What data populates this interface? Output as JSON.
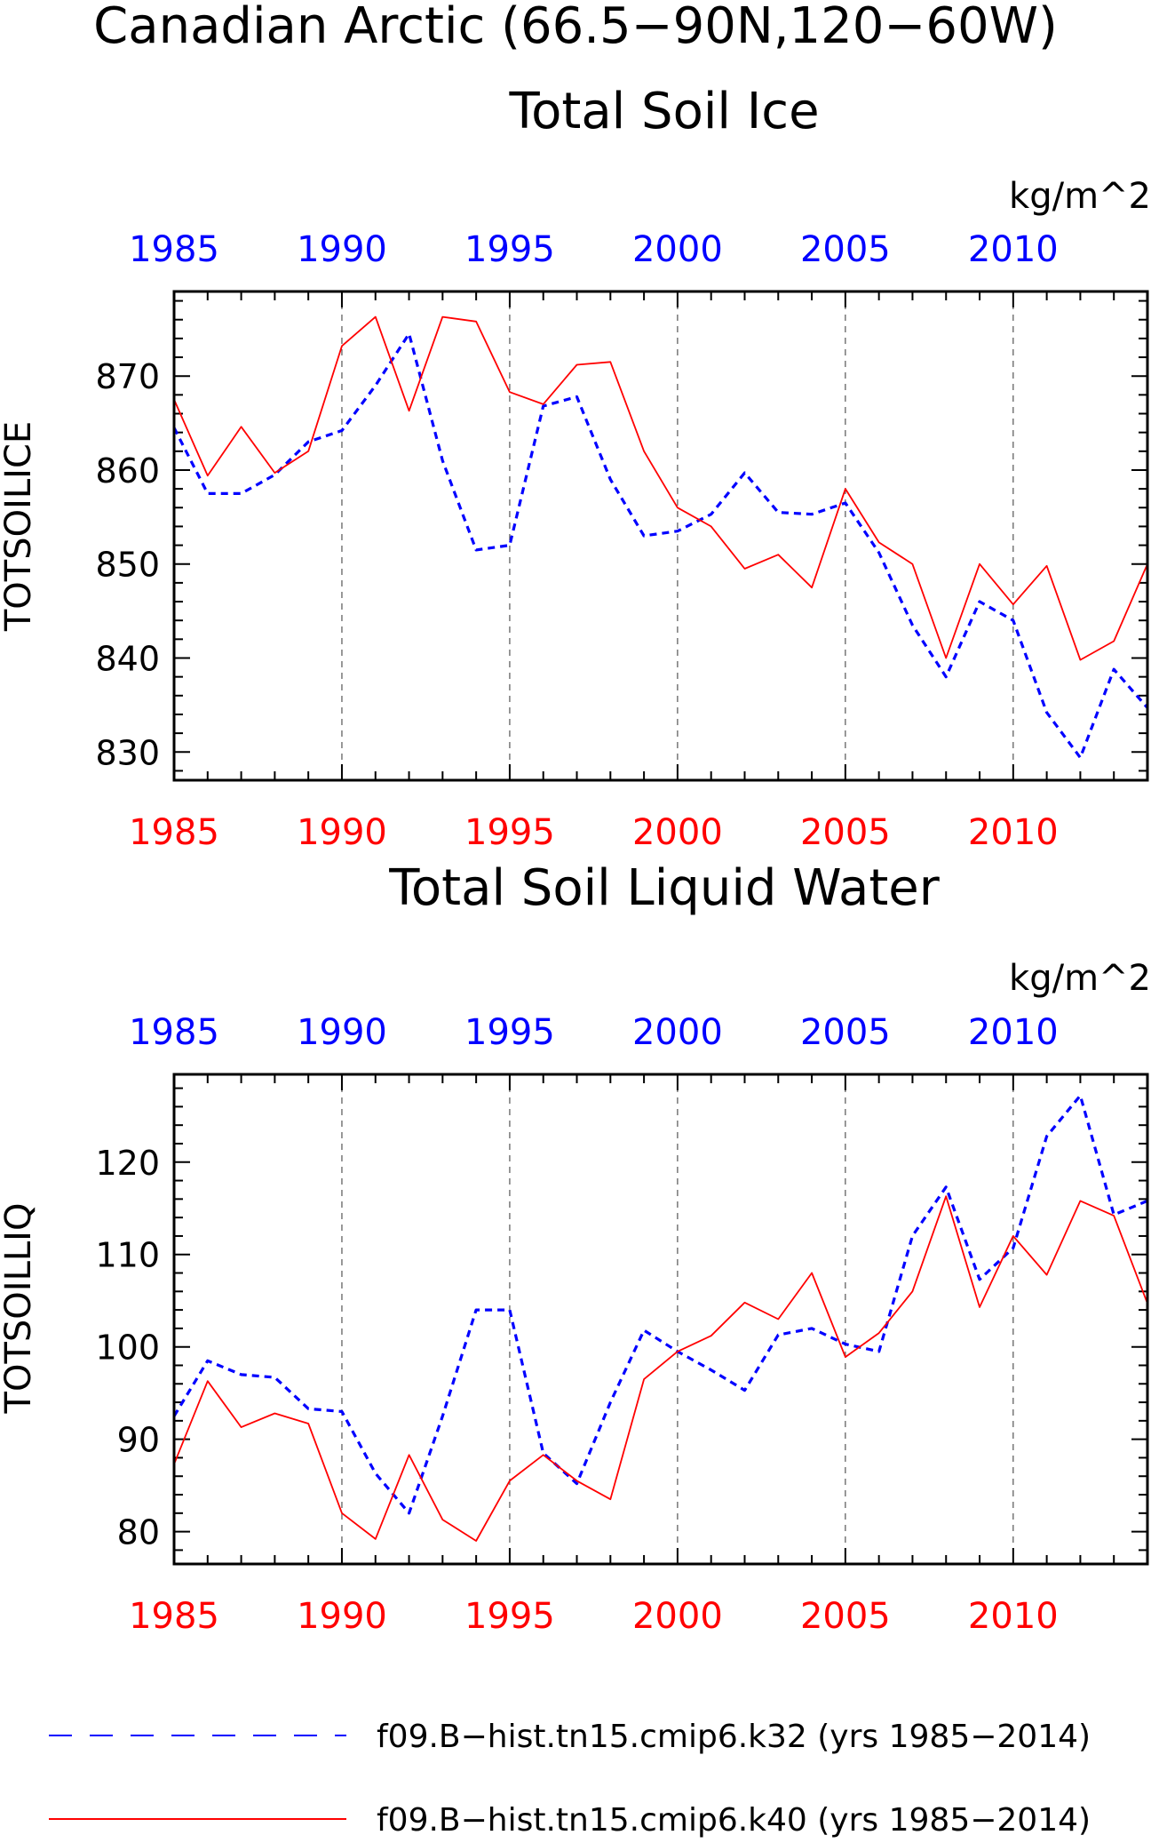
{
  "figure": {
    "title": "Canadian Arctic (66.5−90N,120−60W)"
  },
  "colors": {
    "k32": "#0000ff",
    "k40": "#ff0000",
    "axis": "#000000",
    "grid": "#555555"
  },
  "legend": {
    "items": [
      {
        "label": "f09.B−hist.tn15.cmip6.k32 (yrs 1985−2014)",
        "color": "#0000ff",
        "style": "dashed"
      },
      {
        "label": "f09.B−hist.tn15.cmip6.k40 (yrs 1985−2014)",
        "color": "#ff0000",
        "style": "solid"
      }
    ]
  },
  "chart_data": [
    {
      "type": "line",
      "title": "Total Soil Ice",
      "units": "kg/m^2",
      "xlabel": "",
      "ylabel": "TOTSOILICE",
      "xlim": [
        1985,
        2014
      ],
      "ylim": [
        827,
        879
      ],
      "yticks": [
        830,
        840,
        850,
        860,
        870
      ],
      "xticks": [
        1985,
        1990,
        1995,
        2000,
        2005,
        2010
      ],
      "xtick_labels": [
        "1985",
        "1990",
        "1995",
        "2000",
        "2005",
        "2010"
      ],
      "grid": "vertical dashed at major x ticks",
      "x": [
        1985,
        1986,
        1987,
        1988,
        1989,
        1990,
        1991,
        1992,
        1993,
        1994,
        1995,
        1996,
        1997,
        1998,
        1999,
        2000,
        2001,
        2002,
        2003,
        2004,
        2005,
        2006,
        2007,
        2008,
        2009,
        2010,
        2011,
        2012,
        2013,
        2014
      ],
      "series": [
        {
          "name": "f09.B−hist.tn15.cmip6.k32 (yrs 1985−2014)",
          "color": "#0000ff",
          "style": "dashed",
          "values": [
            864.5,
            857.5,
            857.5,
            859.5,
            863,
            864.2,
            869,
            874.5,
            861,
            851.5,
            852,
            866.8,
            867.8,
            859,
            853,
            853.5,
            855.3,
            859.7,
            855.5,
            855.3,
            856.5,
            851.2,
            843.5,
            838,
            846,
            844,
            834.2,
            829.4,
            838.8,
            834.7
          ]
        },
        {
          "name": "f09.B−hist.tn15.cmip6.k40 (yrs 1985−2014)",
          "color": "#ff0000",
          "style": "solid",
          "values": [
            867.5,
            859.4,
            864.6,
            859.7,
            862,
            873.2,
            876.3,
            866.3,
            876.3,
            875.8,
            868.3,
            867,
            871.2,
            871.5,
            862,
            856,
            854,
            849.5,
            851,
            847.5,
            858,
            852.3,
            850,
            840,
            850,
            845.7,
            849.8,
            839.8,
            841.8,
            850
          ]
        }
      ]
    },
    {
      "type": "line",
      "title": "Total Soil Liquid Water",
      "units": "kg/m^2",
      "xlabel": "",
      "ylabel": "TOTSOILLIQ",
      "xlim": [
        1985,
        2014
      ],
      "ylim": [
        76.5,
        129.5
      ],
      "yticks": [
        80,
        90,
        100,
        110,
        120
      ],
      "xticks": [
        1985,
        1990,
        1995,
        2000,
        2005,
        2010
      ],
      "xtick_labels": [
        "1985",
        "1990",
        "1995",
        "2000",
        "2005",
        "2010"
      ],
      "grid": "vertical dashed at major x ticks",
      "x": [
        1985,
        1986,
        1987,
        1988,
        1989,
        1990,
        1991,
        1992,
        1993,
        1994,
        1995,
        1996,
        1997,
        1998,
        1999,
        2000,
        2001,
        2002,
        2003,
        2004,
        2005,
        2006,
        2007,
        2008,
        2009,
        2010,
        2011,
        2012,
        2013,
        2014
      ],
      "series": [
        {
          "name": "f09.B−hist.tn15.cmip6.k32 (yrs 1985−2014)",
          "color": "#0000ff",
          "style": "dashed",
          "values": [
            92.5,
            98.5,
            97,
            96.7,
            93.3,
            93,
            86.3,
            82,
            92.5,
            104,
            104,
            88.5,
            85.2,
            94,
            101.8,
            99.5,
            97.5,
            95.3,
            101.3,
            102,
            100.3,
            99.5,
            112,
            117.3,
            107.3,
            110.7,
            122.8,
            127.2,
            114.3,
            115.8
          ]
        },
        {
          "name": "f09.B−hist.tn15.cmip6.k40 (yrs 1985−2014)",
          "color": "#ff0000",
          "style": "solid",
          "values": [
            87.3,
            96.3,
            91.3,
            92.8,
            91.7,
            82,
            79.2,
            88.3,
            81.3,
            79,
            85.5,
            88.3,
            85.5,
            83.5,
            96.5,
            99.5,
            101.2,
            104.8,
            103,
            108,
            98.9,
            101.5,
            106,
            116.3,
            104.3,
            112,
            107.8,
            115.8,
            114.2,
            104.7
          ]
        }
      ]
    }
  ]
}
